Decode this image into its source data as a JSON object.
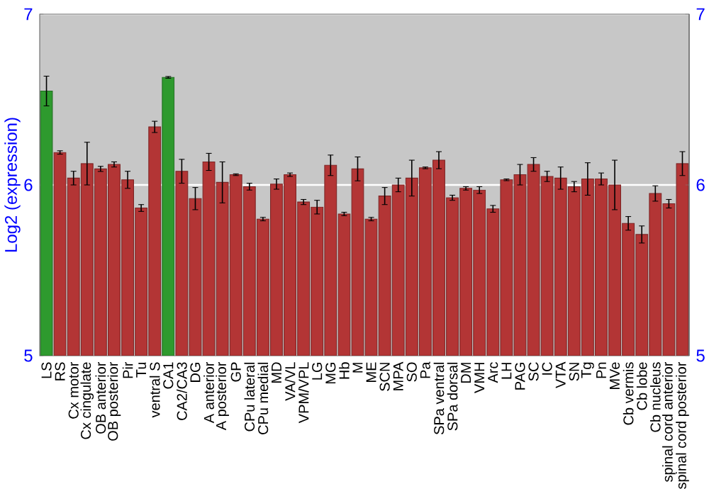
{
  "chart_data": {
    "type": "bar",
    "ylabel": "Log2 (expression)",
    "categories": [
      "LS",
      "RS",
      "Cx motor",
      "Cx cingulate",
      "OB anterior",
      "OB posterior",
      "Pir",
      "Tu",
      "ventral S",
      "CA1",
      "CA2/CA3",
      "DG",
      "A anterior",
      "A posterior",
      "GP",
      "CPu lateral",
      "CPu medial",
      "MD",
      "VA/VL",
      "VPM/VPL",
      "LG",
      "MG",
      "Hb",
      "M",
      "ME",
      "SCN",
      "MPA",
      "SO",
      "Pa",
      "SPa ventral",
      "SPa dorsal",
      "DM",
      "VMH",
      "Arc",
      "LH",
      "PAG",
      "SC",
      "IC",
      "VTA",
      "SN",
      "Tg",
      "Pn",
      "MVe",
      "Cb vermis",
      "Cb lobe",
      "Cb nucleus",
      "spinal cord anterior",
      "spinal cord posterior"
    ],
    "values": [
      6.55,
      6.19,
      6.04,
      6.125,
      6.094,
      6.12,
      6.03,
      5.865,
      6.34,
      6.63,
      6.08,
      5.92,
      6.135,
      6.015,
      6.06,
      5.99,
      5.8,
      6.005,
      6.06,
      5.9,
      5.87,
      6.115,
      5.83,
      6.094,
      5.8,
      5.935,
      6.0,
      6.04,
      6.1,
      6.145,
      5.925,
      5.98,
      5.97,
      5.86,
      6.03,
      6.06,
      6.12,
      6.05,
      6.04,
      5.99,
      6.035,
      6.035,
      6.0,
      5.775,
      5.71,
      5.95,
      5.89,
      6.125
    ],
    "errors": [
      0.087,
      0.01,
      0.04,
      0.125,
      0.015,
      0.015,
      0.05,
      0.02,
      0.033,
      0.005,
      0.07,
      0.065,
      0.05,
      0.12,
      0.005,
      0.02,
      0.01,
      0.03,
      0.01,
      0.015,
      0.04,
      0.06,
      0.01,
      0.07,
      0.01,
      0.05,
      0.04,
      0.105,
      0.005,
      0.05,
      0.015,
      0.01,
      0.02,
      0.02,
      0.005,
      0.06,
      0.04,
      0.03,
      0.065,
      0.03,
      0.095,
      0.035,
      0.145,
      0.04,
      0.05,
      0.045,
      0.025,
      0.07
    ],
    "colors": [
      "#2e9a2e",
      "#b33535",
      "#b33535",
      "#b33535",
      "#b33535",
      "#b33535",
      "#b33535",
      "#b33535",
      "#b33535",
      "#2e9a2e",
      "#b33535",
      "#b33535",
      "#b33535",
      "#b33535",
      "#b33535",
      "#b33535",
      "#b33535",
      "#b33535",
      "#b33535",
      "#b33535",
      "#b33535",
      "#b33535",
      "#b33535",
      "#b33535",
      "#b33535",
      "#b33535",
      "#b33535",
      "#b33535",
      "#b33535",
      "#b33535",
      "#b33535",
      "#b33535",
      "#b33535",
      "#b33535",
      "#b33535",
      "#b33535",
      "#b33535",
      "#b33535",
      "#b33535",
      "#b33535",
      "#b33535",
      "#b33535",
      "#b33535",
      "#b33535",
      "#b33535",
      "#b33535",
      "#b33535",
      "#b33535"
    ],
    "ylim": [
      5,
      7
    ],
    "yticks": [
      5,
      6,
      7
    ],
    "y2lim": [
      5,
      7
    ],
    "y2ticks": [
      5,
      6,
      7
    ],
    "grid": "y"
  }
}
